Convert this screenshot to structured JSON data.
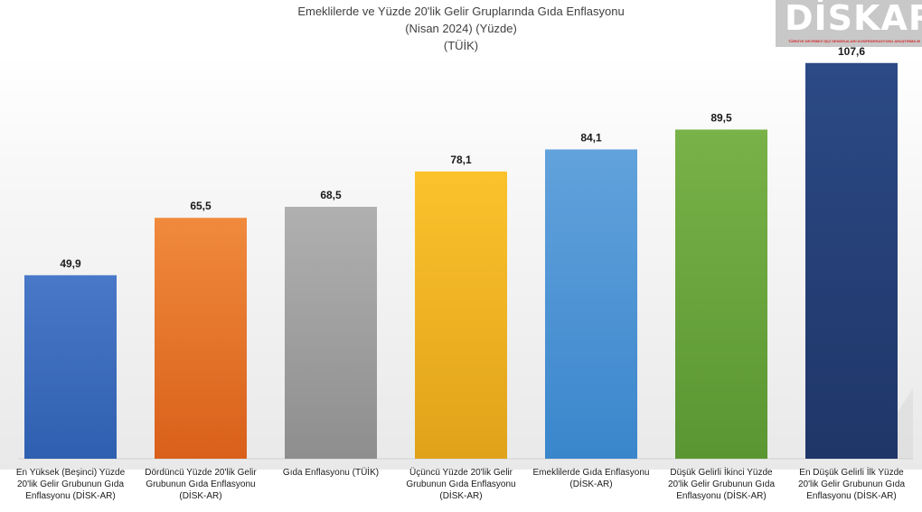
{
  "title": {
    "line1": "Emeklilerde ve Yüzde 20'lik Gelir Gruplarında Gıda Enflasyonu",
    "line2": "(Nisan 2024) (Yüzde)",
    "line3": "(TÜİK)"
  },
  "logo": {
    "text": "DİSKAR",
    "subtitle": "TÜRKİYE DEVRİMCİ İŞÇİ SENDİKALARI KONFEDERASYONU ARAŞTIRMA MERKEZİ"
  },
  "chart_data": {
    "type": "bar",
    "categories": [
      "En Yüksek (Beşinci) Yüzde 20'lik Gelir Grubunun Gıda Enflasyonu (DİSK-AR)",
      "Dördüncü Yüzde 20'lik Gelir Grubunun Gıda Enflasyonu (DİSK-AR)",
      "Gıda Enflasyonu (TÜİK)",
      "Üçüncü Yüzde 20'lik Gelir Grubunun Gıda Enflasyonu (DİSK-AR)",
      "Emeklilerde Gıda Enflasyonu (DİSK-AR)",
      "Düşük Gelirli İkinci Yüzde 20'lik Gelir Grubunun Gıda Enflasyonu (DİSK-AR)",
      "En Düşük Gelirli İlk Yüzde 20'lik Gelir Grubunun Gıda Enflasyonu (DİSK-AR)"
    ],
    "category_lines": [
      [
        "En Yüksek (Beşinci) Yüzde",
        "20'lik Gelir Grubunun Gıda",
        "Enflasyonu (DİSK-AR)"
      ],
      [
        "Dördüncü Yüzde 20'lik Gelir",
        "Grubunun Gıda Enflasyonu",
        "(DİSK-AR)"
      ],
      [
        "Gıda Enflasyonu (TÜİK)"
      ],
      [
        "Üçüncü Yüzde 20'lik Gelir",
        "Grubunun Gıda Enflasyonu",
        "(DİSK-AR)"
      ],
      [
        "Emeklilerde Gıda Enflasyonu",
        "(DİSK-AR)"
      ],
      [
        "Düşük Gelirli İkinci Yüzde",
        "20'lik Gelir Grubunun Gıda",
        "Enflasyonu (DİSK-AR)"
      ],
      [
        "En Düşük Gelirli İlk Yüzde",
        "20'lik Gelir Grubunun Gıda",
        "Enflasyonu (DİSK-AR)"
      ]
    ],
    "values": [
      49.9,
      65.5,
      68.5,
      78.1,
      84.1,
      89.5,
      107.6
    ],
    "value_labels": [
      "49,9",
      "65,5",
      "68,5",
      "78,1",
      "84,1",
      "89,5",
      "107,6"
    ],
    "colors": [
      [
        "#4a78c8",
        "#2f5fb0"
      ],
      [
        "#f08a3c",
        "#d9601a"
      ],
      [
        "#b0b0b0",
        "#8e8e8e"
      ],
      [
        "#fcc22c",
        "#e0a21a"
      ],
      [
        "#62a2dc",
        "#3a86cc"
      ],
      [
        "#78b248",
        "#5a9632"
      ],
      [
        "#2c4a86",
        "#1f3668"
      ]
    ],
    "ylim": [
      0,
      110
    ],
    "grid": false,
    "legend": "none"
  }
}
